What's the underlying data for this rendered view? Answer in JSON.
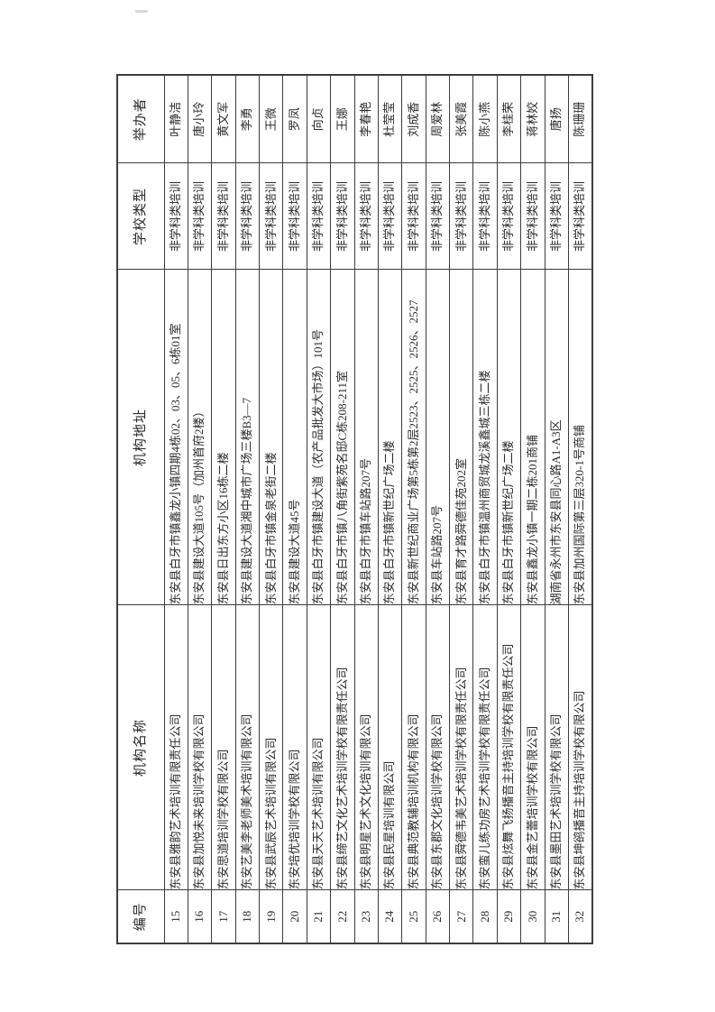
{
  "page": {
    "background_color": "#ffffff",
    "text_color": "#2b2b2b",
    "border_color": "#3c3c3c"
  },
  "table": {
    "orientation": "rotated-90-ccw",
    "headers": [
      "编号",
      "机构名称",
      "机构地址",
      "学校类型",
      "举办者"
    ],
    "rows": [
      {
        "id": "15",
        "name": "东安县雅韵艺术培训有限责任公司",
        "address": "东安县白牙市镇鑫龙小镇四期4栋02、03、05、6栋01室",
        "type": "非学科类培训",
        "organizer": "叶静洁"
      },
      {
        "id": "16",
        "name": "东安县加悦未来培训学校有限公司",
        "address": "东安县建设大道105号（加州首府2楼）",
        "type": "非学科类培训",
        "organizer": "唐小玲"
      },
      {
        "id": "17",
        "name": "东安思道培训学校有限公司",
        "address": "东安县日出东方小区16栋二楼",
        "type": "非学科类培训",
        "organizer": "黄文军"
      },
      {
        "id": "18",
        "name": "东安艺美李老师美术培训有限公司",
        "address": "东安县建设大道湘中城市广场三楼B3—7",
        "type": "非学科类培训",
        "organizer": "李勇"
      },
      {
        "id": "19",
        "name": "东安县武辰艺术培训有限公司",
        "address": "东安县白牙市镇金泉老街二楼",
        "type": "非学科类培训",
        "organizer": "王微"
      },
      {
        "id": "20",
        "name": "东安培优培训学校有限公司",
        "address": "东安县建设大道45号",
        "type": "非学科类培训",
        "organizer": "罗凤"
      },
      {
        "id": "21",
        "name": "东安县天天艺术培训有限公司",
        "address": "东安县白牙市镇建设大道（农产品批发大市场）101号",
        "type": "非学科类培训",
        "organizer": "向贞"
      },
      {
        "id": "22",
        "name": "东安县缔艺文化艺术培训学校有限责任公司",
        "address": "东安县白牙市镇八角街紫苑名邸C栋208-211室",
        "type": "非学科类培训",
        "organizer": "王娜"
      },
      {
        "id": "23",
        "name": "东安县明星艺术文化培训有限公司",
        "address": "东安县白牙市镇车站路207号",
        "type": "非学科类培训",
        "organizer": "李春艳"
      },
      {
        "id": "24",
        "name": "东安县民星培训有限公司",
        "address": "东安县白牙市镇新世纪广场二楼",
        "type": "非学科类培训",
        "organizer": "杜莹莹"
      },
      {
        "id": "25",
        "name": "东安县典范教辅培训机构有限公司",
        "address": "东安县新世纪商业广场第5栋第2层2523、2525、2526、2527",
        "type": "非学科类培训",
        "organizer": "刘成香"
      },
      {
        "id": "26",
        "name": "东安县东郡文化培训学校有限公司",
        "address": "东安县车站路207号",
        "type": "非学科类培训",
        "organizer": "周爱林"
      },
      {
        "id": "27",
        "name": "东安县舜德韦美艺术培训学校有限责任公司",
        "address": "东安县育才路舜德佳苑202室",
        "type": "非学科类培训",
        "organizer": "张美霞"
      },
      {
        "id": "28",
        "name": "东安蛮儿练功房艺术培训学校有限责任公司",
        "address": "东安县白牙市镇温州商贸城龙溪鑫城三栋二楼",
        "type": "非学科类培训",
        "organizer": "陈小燕"
      },
      {
        "id": "29",
        "name": "东安县炫舞飞扬播音主持培训学校有限责任公司",
        "address": "东安县白牙市镇新世纪广场二楼",
        "type": "非学科类培训",
        "organizer": "李桂荣"
      },
      {
        "id": "30",
        "name": "东安县金艺蕾培训学校有限公司",
        "address": "东安县鑫龙小镇一期二栋201商铺",
        "type": "非学科类培训",
        "organizer": "蒋林姣"
      },
      {
        "id": "31",
        "name": "东安县墨田艺术培训学校有限公司",
        "address": "湖南省永州市东安县同心路A1-A3区",
        "type": "非学科类培训",
        "organizer": "唐扬"
      },
      {
        "id": "32",
        "name": "东安县坤鹆播音主持培训学校有限公司",
        "address": "东安县加州国际第三层320-1号商铺",
        "type": "非学科类培训",
        "organizer": "陈珊珊"
      }
    ]
  }
}
